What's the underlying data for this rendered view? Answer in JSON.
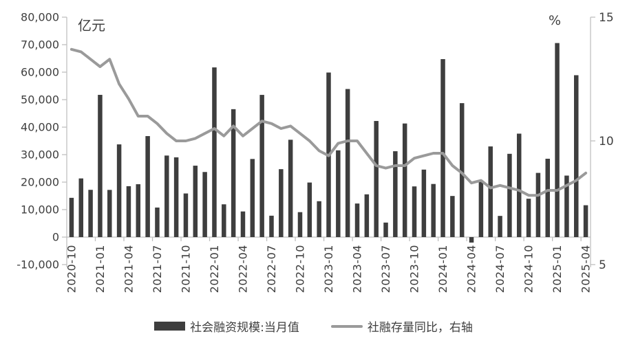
{
  "chart_data": {
    "type": "combo-bar-line",
    "title": "",
    "x": [
      "2020-10",
      "2020-11",
      "2020-12",
      "2021-01",
      "2021-02",
      "2021-03",
      "2021-04",
      "2021-05",
      "2021-06",
      "2021-07",
      "2021-08",
      "2021-09",
      "2021-10",
      "2021-11",
      "2021-12",
      "2022-01",
      "2022-02",
      "2022-03",
      "2022-04",
      "2022-05",
      "2022-06",
      "2022-07",
      "2022-08",
      "2022-09",
      "2022-10",
      "2022-11",
      "2022-12",
      "2023-01",
      "2023-02",
      "2023-03",
      "2023-04",
      "2023-05",
      "2023-06",
      "2023-07",
      "2023-08",
      "2023-09",
      "2023-10",
      "2023-11",
      "2023-12",
      "2024-01",
      "2024-02",
      "2024-03",
      "2024-04",
      "2024-05",
      "2024-06",
      "2024-07",
      "2024-08",
      "2024-09",
      "2024-10",
      "2024-11",
      "2024-12",
      "2025-01",
      "2025-02",
      "2025-03",
      "2025-04"
    ],
    "x_tick_every": 3,
    "x_tick_labels": [
      "2020-10",
      "2021-01",
      "2021-04",
      "2021-07",
      "2021-10",
      "2022-01",
      "2022-04",
      "2022-07",
      "2022-10",
      "2023-01",
      "2023-04",
      "2023-07",
      "2023-10",
      "2024-01",
      "2024-04",
      "2024-07",
      "2024-10",
      "2025-01",
      "2025-04"
    ],
    "series": [
      {
        "name": "社会融资规模:当月值",
        "type": "bar",
        "axis": "left",
        "color": "#3e3e3e",
        "values": [
          14285,
          21343,
          17194,
          51744,
          17166,
          33727,
          18520,
          19238,
          36743,
          10752,
          29665,
          29013,
          15873,
          25983,
          23682,
          61726,
          11926,
          46538,
          9327,
          28421,
          51733,
          7785,
          24712,
          35412,
          9079,
          19852,
          13058,
          59866,
          31562,
          53871,
          12216,
          15556,
          42241,
          5282,
          31239,
          41329,
          18442,
          24554,
          19326,
          64745,
          14959,
          48725,
          -1987,
          20648,
          32982,
          7707,
          30298,
          37634,
          13958,
          23357,
          28507,
          70593,
          22375,
          58887,
          11591
        ]
      },
      {
        "name": "社融存量同比，右轴",
        "type": "line",
        "axis": "right",
        "color": "#9a9a9a",
        "values": [
          13.7,
          13.6,
          13.3,
          13.0,
          13.3,
          12.3,
          11.7,
          11.0,
          11.0,
          10.7,
          10.3,
          10.0,
          10.0,
          10.1,
          10.3,
          10.5,
          10.2,
          10.6,
          10.2,
          10.5,
          10.8,
          10.7,
          10.5,
          10.6,
          10.3,
          10.0,
          9.6,
          9.4,
          9.9,
          10.0,
          10.0,
          9.5,
          9.0,
          8.9,
          9.0,
          9.0,
          9.3,
          9.4,
          9.5,
          9.5,
          9.0,
          8.7,
          8.3,
          8.4,
          8.1,
          8.2,
          8.1,
          8.0,
          7.8,
          7.8,
          8.0,
          8.0,
          8.2,
          8.4,
          8.7
        ]
      }
    ],
    "left_axis": {
      "unit": "亿元",
      "min": -10000,
      "max": 80000,
      "tick_labels": [
        "80,000",
        "70,000",
        "60,000",
        "50,000",
        "40,000",
        "30,000",
        "20,000",
        "10,000",
        "0",
        "-10,000"
      ],
      "tick_values": [
        80000,
        70000,
        60000,
        50000,
        40000,
        30000,
        20000,
        10000,
        0,
        -10000
      ]
    },
    "right_axis": {
      "unit": "%",
      "min": 5,
      "max": 15,
      "tick_labels": [
        "15",
        "10",
        "5"
      ],
      "tick_values": [
        15,
        10,
        5
      ]
    },
    "legend_position": "bottom",
    "grid": false,
    "colors": {
      "axis_line": "#bfbfbf",
      "tick_text": "#3f3f3f"
    }
  }
}
